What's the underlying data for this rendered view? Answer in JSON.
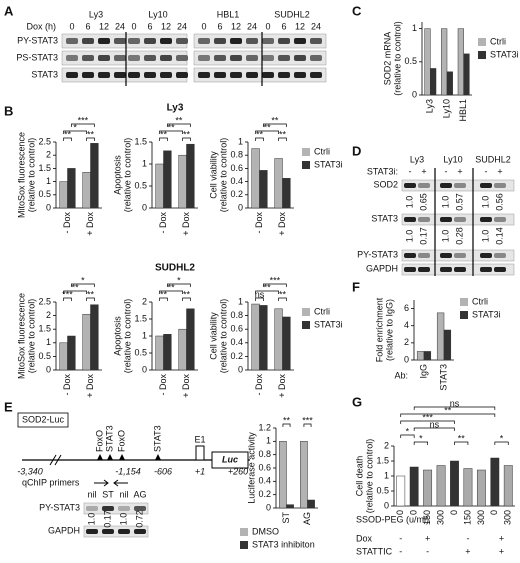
{
  "panel_labels": [
    "A",
    "B",
    "C",
    "D",
    "E",
    "F",
    "G"
  ],
  "blot_A": {
    "cell_lines": [
      "Ly3",
      "Ly10",
      "HBL1",
      "SUDHL2"
    ],
    "time_label": "Dox (h)",
    "times": [
      "0",
      "6",
      "12",
      "24"
    ],
    "rows": [
      "PY-STAT3",
      "PS-STAT3",
      "STAT3"
    ]
  },
  "blot_D": {
    "treatment_label": "STAT3i:",
    "cell_lines": [
      "Ly3",
      "Ly10",
      "SUDHL2"
    ],
    "lanes": [
      "-",
      "+"
    ],
    "rows": [
      "SOD2",
      "STAT3",
      "PY-STAT3",
      "GAPDH"
    ],
    "sod2_ratios": [
      [
        "1.0",
        "0.65"
      ],
      [
        "1.0",
        "0.57"
      ],
      [
        "1.0",
        "0.56"
      ]
    ],
    "stat3_ratios": [
      [
        "1.0",
        "0.17"
      ],
      [
        "1.0",
        "0.28"
      ],
      [
        "1.0",
        "0.14"
      ]
    ]
  },
  "diagram_E": {
    "construct": "SOD2-Luc",
    "sites": [
      "FoxO",
      "STAT3",
      "FoxO",
      "STAT3"
    ],
    "positions": [
      "-3,340",
      "-1,154",
      "-606",
      "+1",
      "+260"
    ],
    "exon": "E1",
    "reporter": "Luc",
    "primers": "qChIP primers"
  },
  "blot_E": {
    "lanes": [
      "nil",
      "ST",
      "nil",
      "AG"
    ],
    "rows": [
      "PY-STAT3",
      "GAPDH"
    ],
    "ratios": [
      "1.0",
      "0.17",
      "1.0",
      "0.72"
    ]
  },
  "chart_data": [
    {
      "type": "bar",
      "ylabel": [
        "MitoSox fluorescence",
        "(relative to control)"
      ],
      "categories": [
        "- Dox",
        "+ Dox"
      ],
      "series": [
        {
          "color": "#b3b3b3",
          "values": [
            1.0,
            1.35
          ]
        },
        {
          "color": "#333333",
          "values": [
            1.5,
            2.45
          ]
        }
      ],
      "ylim": [
        0,
        2.5
      ],
      "yticks": [
        0,
        0.5,
        1,
        1.5,
        2,
        2.5
      ],
      "annotations": [
        "**",
        "**",
        "*",
        "***"
      ]
    },
    {
      "type": "bar",
      "title": "Ly3",
      "ylabel": [
        "Apoptosis",
        "(relative to control)"
      ],
      "categories": [
        "- Dox",
        "+ Dox"
      ],
      "series": [
        {
          "color": "#b3b3b3",
          "values": [
            1.0,
            1.2
          ]
        },
        {
          "color": "#333333",
          "values": [
            1.3,
            1.45
          ]
        }
      ],
      "ylim": [
        0,
        1.5
      ],
      "yticks": [
        0,
        0.5,
        1,
        1.5
      ],
      "annotations": [
        "**",
        "**",
        "**",
        "**"
      ]
    },
    {
      "type": "bar",
      "ylabel": [
        "Cell viability",
        "(relative to control)"
      ],
      "categories": [
        "- Dox",
        "+ Dox"
      ],
      "series": [
        {
          "name": "Ctrli",
          "color": "#b3b3b3",
          "values": [
            0.9,
            0.75
          ]
        },
        {
          "name": "STAT3i",
          "color": "#333333",
          "values": [
            0.57,
            0.45
          ]
        }
      ],
      "ylim": [
        0,
        1
      ],
      "yticks": [
        0,
        0.2,
        0.4,
        0.6,
        0.8,
        1
      ],
      "annotations": [
        "**",
        "**",
        "**",
        "**"
      ]
    },
    {
      "type": "bar",
      "ylabel": [
        "MitoSox fluorescence",
        "(relative to control)"
      ],
      "categories": [
        "- Dox",
        "+ Dox"
      ],
      "series": [
        {
          "color": "#b3b3b3",
          "values": [
            1.0,
            2.05
          ]
        },
        {
          "color": "#333333",
          "values": [
            1.25,
            2.4
          ]
        }
      ],
      "ylim": [
        0,
        2.5
      ],
      "yticks": [
        0,
        0.5,
        1,
        1.5,
        2,
        2.5
      ],
      "annotations": [
        "***",
        "**",
        "**",
        "*"
      ]
    },
    {
      "type": "bar",
      "title": "SUDHL2",
      "ylabel": [
        "Apoptosis",
        "(relative to control)"
      ],
      "categories": [
        "- Dox",
        "+ Dox"
      ],
      "series": [
        {
          "color": "#b3b3b3",
          "values": [
            1.0,
            1.2
          ]
        },
        {
          "color": "#333333",
          "values": [
            1.05,
            1.8
          ]
        }
      ],
      "ylim": [
        0,
        2
      ],
      "yticks": [
        0,
        0.5,
        1,
        1.5,
        2
      ],
      "annotations": [
        "**",
        "**",
        "**",
        "*"
      ]
    },
    {
      "type": "bar",
      "ylabel": [
        "Cell viability",
        "(relative to control)"
      ],
      "categories": [
        "- Dox",
        "+ Dox"
      ],
      "series": [
        {
          "name": "Ctrli",
          "color": "#b3b3b3",
          "values": [
            0.97,
            0.9
          ]
        },
        {
          "name": "STAT3i",
          "color": "#333333",
          "values": [
            0.95,
            0.78
          ]
        }
      ],
      "ylim": [
        0,
        1
      ],
      "yticks": [
        0,
        0.2,
        0.4,
        0.6,
        0.8,
        1
      ],
      "annotations": [
        "ns",
        "**",
        "**",
        "***"
      ]
    },
    {
      "type": "bar",
      "ylabel": [
        "SOD2 mRNA",
        "(relative to control)"
      ],
      "categories": [
        "Ly3",
        "Ly10",
        "HBL1"
      ],
      "series": [
        {
          "name": "Ctrli",
          "color": "#b3b3b3",
          "values": [
            1,
            1,
            1
          ]
        },
        {
          "name": "STAT3i",
          "color": "#333333",
          "values": [
            0.4,
            0.35,
            0.62
          ]
        }
      ],
      "ylim": [
        0,
        1.1
      ],
      "yticks": [
        0,
        0.5,
        1
      ]
    },
    {
      "type": "bar",
      "ylabel": [
        "Luciferase activity"
      ],
      "categories": [
        "ST",
        "AG"
      ],
      "series": [
        {
          "name": "DMSO",
          "color": "#b3b3b3",
          "values": [
            1.0,
            1.0
          ]
        },
        {
          "name": "STAT3 inhibiton",
          "color": "#333333",
          "values": [
            0.05,
            0.12
          ]
        }
      ],
      "ylim": [
        0,
        1.2
      ],
      "yticks": [
        0,
        0.2,
        0.4,
        0.6,
        0.8,
        1,
        1.2
      ],
      "annotations": [
        "**",
        "***"
      ]
    },
    {
      "type": "bar",
      "ylabel": [
        "Fold enrichment",
        "(relative to IgG)"
      ],
      "xlabel": "Ab:",
      "categories": [
        "IgG",
        "STAT3"
      ],
      "series": [
        {
          "name": "Ctrli",
          "color": "#b3b3b3",
          "values": [
            1.0,
            5.5
          ]
        },
        {
          "name": "STAT3i",
          "color": "#333333",
          "values": [
            1.0,
            3.5
          ]
        }
      ],
      "ylim": [
        0,
        7
      ],
      "yticks": [
        0,
        2,
        4,
        6
      ]
    },
    {
      "type": "bar",
      "ylabel": [
        "Cell death",
        "(relative to control)"
      ],
      "xlabel": "SSOD-PEG (u/ml)",
      "categories": [
        "0",
        "0",
        "150",
        "300",
        "0",
        "150",
        "300",
        "0",
        "300"
      ],
      "series": [
        {
          "colors": [
            "#ffffff",
            "#333333",
            "#aaaaaa",
            "#aaaaaa",
            "#333333",
            "#aaaaaa",
            "#aaaaaa",
            "#333333",
            "#aaaaaa"
          ],
          "values": [
            1.0,
            1.3,
            1.2,
            1.35,
            1.5,
            1.25,
            1.2,
            1.6,
            1.35
          ]
        }
      ],
      "ylim": [
        0,
        2
      ],
      "yticks": [
        0,
        0.5,
        1,
        1.5,
        2
      ],
      "annotations": [
        "ns",
        "**",
        "*",
        "***",
        "ns",
        "*",
        "**",
        "*"
      ],
      "rows": [
        {
          "label": "Dox",
          "values": [
            "-",
            "+",
            "-",
            "+"
          ]
        },
        {
          "label": "STATTIC",
          "values": [
            "-",
            "-",
            "+",
            "+"
          ]
        }
      ]
    }
  ]
}
